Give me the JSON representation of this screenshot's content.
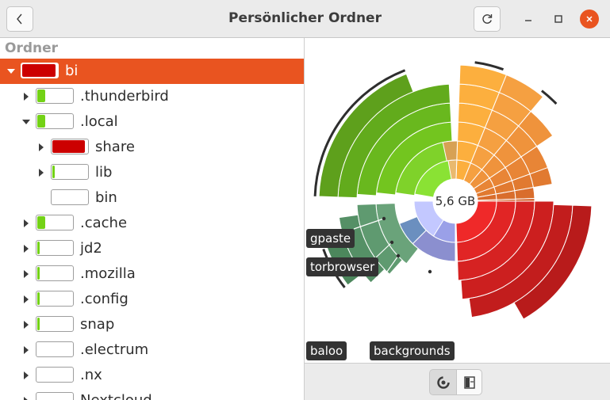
{
  "header": {
    "title": "Persönlicher Ordner",
    "back_icon": "chevron-left-icon",
    "reload_icon": "reload-icon"
  },
  "tree": {
    "column_header": "Ordner",
    "rows": [
      {
        "name": "bi",
        "fill": 0.95,
        "color": "#cc0000",
        "expanded": true,
        "has_children": true,
        "selected": true
      },
      {
        "name": ".thunderbird",
        "fill": 0.22,
        "color": "#73d216",
        "expanded": false,
        "has_children": true
      },
      {
        "name": ".local",
        "fill": 0.22,
        "color": "#73d216",
        "expanded": true,
        "has_children": true
      },
      {
        "name": "share",
        "fill": 0.93,
        "color": "#cc0000",
        "expanded": false,
        "has_children": true
      },
      {
        "name": "lib",
        "fill": 0.05,
        "color": "#73d216",
        "expanded": false,
        "has_children": true
      },
      {
        "name": "bin",
        "fill": 0.0,
        "color": "#73d216",
        "expanded": false,
        "has_children": false
      },
      {
        "name": ".cache",
        "fill": 0.22,
        "color": "#73d216",
        "expanded": false,
        "has_children": true
      },
      {
        "name": "jd2",
        "fill": 0.06,
        "color": "#73d216",
        "expanded": false,
        "has_children": true
      },
      {
        "name": ".mozilla",
        "fill": 0.06,
        "color": "#73d216",
        "expanded": false,
        "has_children": true
      },
      {
        "name": ".config",
        "fill": 0.06,
        "color": "#73d216",
        "expanded": false,
        "has_children": true
      },
      {
        "name": "snap",
        "fill": 0.06,
        "color": "#73d216",
        "expanded": false,
        "has_children": true
      },
      {
        "name": ".electrum",
        "fill": 0.0,
        "color": "#73d216",
        "expanded": false,
        "has_children": true
      },
      {
        "name": ".nx",
        "fill": 0.0,
        "color": "#73d216",
        "expanded": false,
        "has_children": true
      },
      {
        "name": "Nextcloud",
        "fill": 0.0,
        "color": "#73d216",
        "expanded": false,
        "has_children": true
      }
    ]
  },
  "chart": {
    "center_label": "5,6 GB",
    "callouts": [
      "gpaste",
      "torbrowser",
      "baloo",
      "backgrounds"
    ]
  },
  "footer": {
    "rings_icon": "rings-chart-icon",
    "treemap_icon": "treemap-chart-icon"
  },
  "colors": {
    "accent": "#e95420",
    "red": "#cc0000",
    "green": "#73d216",
    "orange": "#f57900"
  }
}
